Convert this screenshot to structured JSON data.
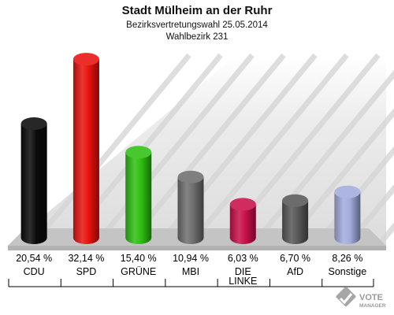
{
  "header": {
    "title": "Stadt Mülheim an der Ruhr",
    "subtitle1": "Bezirksvertretungswahl 25.05.2014",
    "subtitle2": "Wahlbezirk 231"
  },
  "logo": {
    "line1": "VOTE",
    "line2": "MANAGER"
  },
  "colors": {
    "background_wall": "#e4e4e4",
    "floor": "#bdbdbd"
  },
  "chart_data": {
    "type": "bar",
    "title": "Stadt Mülheim an der Ruhr",
    "subtitle": "Bezirksvertretungswahl 25.05.2014 / Wahlbezirk 231",
    "categories": [
      "CDU",
      "SPD",
      "GRÜNE",
      "MBI",
      "DIE LINKE",
      "AfD",
      "Sonstige"
    ],
    "category_lines": [
      [
        "CDU"
      ],
      [
        "SPD"
      ],
      [
        "GRÜNE"
      ],
      [
        "MBI"
      ],
      [
        "DIE",
        "LINKE"
      ],
      [
        "AfD"
      ],
      [
        "Sonstige"
      ]
    ],
    "values": [
      20.54,
      32.14,
      15.4,
      10.94,
      6.03,
      6.7,
      8.26
    ],
    "value_labels": [
      "20,54 %",
      "32,14 %",
      "15,40 %",
      "10,94 %",
      "6,03 %",
      "6,70 %",
      "8,26 %"
    ],
    "colors": [
      "#0a0a0a",
      "#e8120e",
      "#2fbf12",
      "#6e6e6e",
      "#c8104a",
      "#585858",
      "#a2acdc"
    ],
    "ylim": [
      0,
      34
    ],
    "grid": false,
    "legend": "none"
  }
}
